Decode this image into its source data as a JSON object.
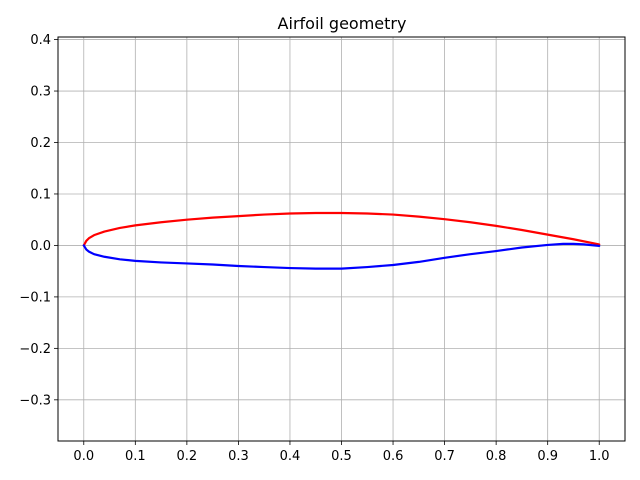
{
  "chart_data": {
    "type": "line",
    "title": "Airfoil geometry",
    "xlabel": "",
    "ylabel": "",
    "xlim": [
      -0.05,
      1.05
    ],
    "ylim": [
      -0.38,
      0.405
    ],
    "grid": true,
    "x_ticks": [
      0.0,
      0.1,
      0.2,
      0.3,
      0.4,
      0.5,
      0.6,
      0.7,
      0.8,
      0.9,
      1.0
    ],
    "x_tick_labels": [
      "0.0",
      "0.1",
      "0.2",
      "0.3",
      "0.4",
      "0.5",
      "0.6",
      "0.7",
      "0.8",
      "0.9",
      "1.0"
    ],
    "y_ticks": [
      -0.3,
      -0.2,
      -0.1,
      0.0,
      0.1,
      0.2,
      0.3,
      0.4
    ],
    "y_tick_labels": [
      "−0.3",
      "−0.2",
      "−0.1",
      "0.0",
      "0.1",
      "0.2",
      "0.3",
      "0.4"
    ],
    "series": [
      {
        "color": "#ff0000",
        "x": [
          0.0,
          0.005,
          0.01,
          0.02,
          0.04,
          0.07,
          0.1,
          0.15,
          0.2,
          0.25,
          0.3,
          0.35,
          0.4,
          0.45,
          0.5,
          0.55,
          0.6,
          0.65,
          0.7,
          0.75,
          0.8,
          0.85,
          0.9,
          0.95,
          1.0
        ],
        "y": [
          0.0,
          0.009,
          0.014,
          0.02,
          0.027,
          0.034,
          0.039,
          0.045,
          0.05,
          0.054,
          0.057,
          0.06,
          0.062,
          0.063,
          0.063,
          0.062,
          0.06,
          0.056,
          0.051,
          0.045,
          0.038,
          0.03,
          0.021,
          0.012,
          0.002
        ]
      },
      {
        "color": "#0000ff",
        "x": [
          0.0,
          0.005,
          0.01,
          0.02,
          0.04,
          0.07,
          0.1,
          0.15,
          0.2,
          0.25,
          0.3,
          0.35,
          0.4,
          0.45,
          0.5,
          0.55,
          0.6,
          0.65,
          0.7,
          0.75,
          0.8,
          0.85,
          0.9,
          0.93,
          0.95,
          0.97,
          1.0
        ],
        "y": [
          0.0,
          -0.008,
          -0.012,
          -0.017,
          -0.022,
          -0.027,
          -0.03,
          -0.033,
          -0.035,
          -0.037,
          -0.04,
          -0.042,
          -0.044,
          -0.045,
          -0.045,
          -0.042,
          -0.038,
          -0.032,
          -0.024,
          -0.017,
          -0.011,
          -0.004,
          0.001,
          0.003,
          0.003,
          0.002,
          -0.001
        ]
      }
    ]
  }
}
